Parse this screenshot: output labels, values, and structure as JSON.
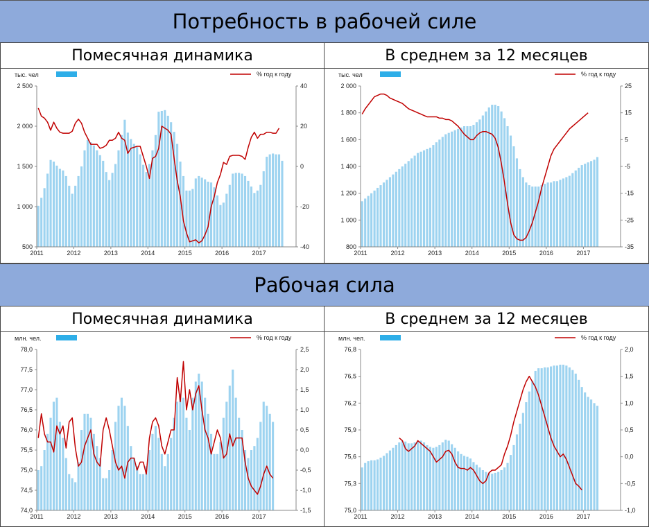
{
  "sections": [
    {
      "title": "Потребность в рабочей силе"
    },
    {
      "title": "Рабочая сила"
    }
  ],
  "panels": {
    "p1": {
      "title": "Помесячная динамика"
    },
    "p2": {
      "title": "В среднем за 12 месяцев"
    },
    "p3": {
      "title": "Помесячная динамика"
    },
    "p4": {
      "title": "В среднем за 12 месяцев"
    }
  },
  "colors": {
    "bars": "#9dd3f0",
    "line": "#c00000",
    "legend_bar": "#2eaee8"
  },
  "chart_data": [
    {
      "type": "bar",
      "left_unit": "тыс. чел",
      "right_unit": "% год к году",
      "ylim": [
        500,
        2500
      ],
      "yticks": [
        "500",
        "1 000",
        "1 500",
        "2 000",
        "2 500"
      ],
      "y2lim": [
        -40,
        40
      ],
      "y2ticks": [
        "-40",
        "-20",
        "0",
        "20",
        "40"
      ],
      "xtick_labels": [
        "2011",
        "2012",
        "2013",
        "2014",
        "2015",
        "2016",
        "2017"
      ],
      "grid": false,
      "legend_position": "top",
      "start": "2011-01",
      "line_start_index": 0,
      "bar_values": [
        1010,
        1110,
        1230,
        1410,
        1580,
        1560,
        1510,
        1470,
        1450,
        1380,
        1260,
        1160,
        1260,
        1380,
        1500,
        1700,
        1830,
        1800,
        1760,
        1700,
        1640,
        1570,
        1430,
        1330,
        1420,
        1530,
        1700,
        1890,
        2080,
        1920,
        1840,
        1780,
        1740,
        1650,
        1520,
        1430,
        1530,
        1700,
        1890,
        2180,
        2190,
        2200,
        2130,
        2050,
        1930,
        1780,
        1560,
        1380,
        1200,
        1200,
        1220,
        1350,
        1380,
        1360,
        1340,
        1310,
        1300,
        1240,
        1140,
        1020,
        1050,
        1160,
        1270,
        1410,
        1420,
        1420,
        1410,
        1380,
        1320,
        1250,
        1170,
        1200,
        1270,
        1440,
        1620,
        1650,
        1660,
        1650,
        1650,
        1570
      ],
      "line_values": [
        29,
        25,
        24,
        22,
        18,
        22,
        19,
        17,
        16.5,
        16.5,
        16.5,
        17.5,
        21.5,
        23.5,
        21.5,
        17,
        14,
        11,
        11,
        11,
        9,
        9.5,
        10.5,
        13,
        13,
        14,
        17,
        14,
        13,
        6.5,
        9,
        9.5,
        10,
        10,
        5,
        0,
        -6,
        4,
        5,
        9,
        20,
        19,
        18,
        16,
        4,
        -7,
        -15,
        -27,
        -33,
        -37.5,
        -37,
        -36.5,
        -38,
        -37,
        -34,
        -30,
        -20,
        -15,
        -8,
        -4,
        2,
        1,
        5,
        5.5,
        5.5,
        5.5,
        5,
        3.5,
        9.5,
        14.5,
        17,
        14,
        16,
        16,
        17,
        17,
        16.5,
        16.5,
        19
      ]
    },
    {
      "type": "bar",
      "left_unit": "тыс. чел",
      "right_unit": "% год к году",
      "ylim": [
        800,
        2000
      ],
      "yticks": [
        "800",
        "1 000",
        "1 200",
        "1 400",
        "1 600",
        "1 800",
        "2 000"
      ],
      "y2lim": [
        -35,
        25
      ],
      "y2ticks": [
        "-35",
        "-25",
        "-15",
        "-5",
        "5",
        "15",
        "25"
      ],
      "xtick_labels": [
        "2011",
        "2012",
        "2013",
        "2014",
        "2015",
        "2016",
        "2017"
      ],
      "grid": false,
      "legend_position": "top",
      "start": "2011-01",
      "line_start_index": 0,
      "bar_values": [
        1140,
        1160,
        1180,
        1200,
        1220,
        1240,
        1260,
        1280,
        1300,
        1320,
        1340,
        1360,
        1380,
        1400,
        1420,
        1440,
        1460,
        1480,
        1500,
        1510,
        1520,
        1530,
        1540,
        1560,
        1580,
        1600,
        1620,
        1640,
        1650,
        1660,
        1670,
        1680,
        1690,
        1700,
        1700,
        1700,
        1710,
        1730,
        1750,
        1780,
        1810,
        1840,
        1860,
        1860,
        1850,
        1810,
        1760,
        1700,
        1630,
        1550,
        1460,
        1380,
        1320,
        1280,
        1260,
        1250,
        1250,
        1250,
        1260,
        1270,
        1280,
        1280,
        1290,
        1290,
        1300,
        1310,
        1320,
        1330,
        1350,
        1370,
        1390,
        1410,
        1420,
        1430,
        1440,
        1450,
        1470
      ],
      "line_values": [
        14.5,
        16.5,
        18,
        19.5,
        21,
        21.5,
        22,
        22,
        21.5,
        20.5,
        20,
        19.5,
        19,
        18.5,
        17.5,
        16.5,
        16,
        15.5,
        15,
        14.5,
        14,
        13.5,
        13.5,
        13.5,
        13.5,
        13,
        13,
        12.5,
        12.5,
        12,
        11,
        10,
        8.5,
        7,
        6,
        5,
        5,
        6.5,
        7.5,
        8,
        8,
        7.5,
        7,
        5.5,
        2,
        -4,
        -11,
        -19,
        -26,
        -30.5,
        -32,
        -32.5,
        -32.5,
        -31.5,
        -29,
        -26,
        -22,
        -18,
        -13,
        -9,
        -5,
        -1,
        1.5,
        3,
        4.5,
        6,
        7.5,
        9,
        10,
        11,
        12,
        13,
        14,
        15
      ]
    },
    {
      "type": "bar",
      "left_unit": "млн. чел.",
      "right_unit": "% год к году",
      "ylim": [
        74.0,
        78.0
      ],
      "yticks": [
        "74,0",
        "74,5",
        "75,0",
        "75,5",
        "76,0",
        "76,5",
        "77,0",
        "77,5",
        "78,0"
      ],
      "y2lim": [
        -1.5,
        2.5
      ],
      "y2ticks": [
        "-1,5",
        "-1,0",
        "-0,5",
        "0,0",
        "0,5",
        "1,0",
        "1,5",
        "2,0",
        "2,5"
      ],
      "xtick_labels": [
        "2011",
        "2012",
        "2013",
        "2014",
        "2015",
        "2016",
        "2017"
      ],
      "grid": false,
      "legend_position": "top",
      "start": "2011-01",
      "line_start_index": 0,
      "bar_values": [
        75.0,
        75.1,
        75.5,
        75.9,
        76.3,
        76.7,
        76.8,
        76.2,
        75.8,
        75.3,
        74.9,
        74.8,
        74.7,
        75.2,
        76.0,
        76.4,
        76.4,
        76.3,
        75.9,
        75.6,
        75.3,
        74.8,
        74.8,
        75.0,
        75.5,
        76.2,
        76.6,
        76.8,
        76.6,
        76.1,
        75.6,
        75.3,
        75.1,
        74.9,
        74.9,
        75.1,
        75.5,
        75.9,
        76.1,
        75.8,
        75.4,
        75.1,
        75.4,
        75.8,
        76.3,
        76.7,
        76.9,
        76.8,
        76.3,
        76.0,
        76.8,
        77.2,
        77.4,
        77.2,
        76.8,
        76.4,
        75.9,
        75.4,
        75.4,
        75.7,
        76.3,
        76.7,
        77.1,
        77.5,
        76.8,
        76.3,
        76.0,
        75.5,
        75.3,
        75.5,
        75.6,
        75.8,
        76.2,
        76.7,
        76.6,
        76.4,
        76.2
      ],
      "line_values": [
        0.3,
        0.9,
        0.4,
        0.2,
        0.2,
        -0.05,
        0.6,
        0.4,
        0.6,
        0.05,
        0.7,
        0.8,
        0.05,
        -0.4,
        -0.3,
        0.1,
        0.3,
        0.5,
        -0.1,
        -0.3,
        -0.4,
        0.5,
        0.8,
        0.5,
        0.1,
        -0.3,
        -0.5,
        -0.4,
        -0.7,
        -0.3,
        -0.2,
        -0.2,
        -0.5,
        -0.3,
        -0.3,
        -0.6,
        0.3,
        0.7,
        0.8,
        0.6,
        0.1,
        -0.1,
        0.2,
        0.5,
        0.5,
        1.8,
        1.2,
        2.2,
        1.0,
        1.5,
        1.0,
        1.4,
        1.6,
        1.0,
        0.5,
        0.3,
        -0.1,
        0.2,
        0.5,
        0.3,
        -0.2,
        -0.1,
        0.4,
        0.1,
        0.3,
        0.3,
        0.3,
        -0.3,
        -0.7,
        -0.9,
        -1.0,
        -1.1,
        -0.9,
        -0.6,
        -0.4,
        -0.6,
        -0.7
      ]
    },
    {
      "type": "bar",
      "left_unit": "млн. чел.",
      "right_unit": "% год к году",
      "ylim": [
        75.0,
        76.8
      ],
      "yticks": [
        "75,0",
        "75,3",
        "75,6",
        "75,9",
        "76,2",
        "76,5",
        "76,8"
      ],
      "y2lim": [
        -1.0,
        2.0
      ],
      "y2ticks": [
        "-1,0",
        "-0,5",
        "0,0",
        "0,5",
        "1,0",
        "1,5",
        "2,0"
      ],
      "xtick_labels": [
        "2011",
        "2012",
        "2013",
        "2014",
        "2015",
        "2016",
        "2017"
      ],
      "grid": false,
      "legend_position": "top",
      "start": "2011-01",
      "line_start_index": 12,
      "bar_values": [
        75.48,
        75.53,
        75.55,
        75.56,
        75.56,
        75.57,
        75.59,
        75.61,
        75.64,
        75.67,
        75.7,
        75.73,
        75.76,
        75.78,
        75.77,
        75.75,
        75.75,
        75.76,
        75.77,
        75.78,
        75.76,
        75.73,
        75.71,
        75.7,
        75.71,
        75.73,
        75.76,
        75.79,
        75.78,
        75.74,
        75.7,
        75.66,
        75.63,
        75.61,
        75.6,
        75.58,
        75.54,
        75.51,
        75.48,
        75.45,
        75.43,
        75.42,
        75.41,
        75.42,
        75.43,
        75.45,
        75.48,
        75.53,
        75.62,
        75.73,
        75.85,
        75.97,
        76.09,
        76.21,
        76.33,
        76.45,
        76.56,
        76.59,
        76.59,
        76.6,
        76.6,
        76.61,
        76.62,
        76.62,
        76.63,
        76.63,
        76.62,
        76.6,
        76.57,
        76.53,
        76.46,
        76.38,
        76.32,
        76.27,
        76.24,
        76.2,
        76.17
      ],
      "line_values": [
        0.35,
        0.3,
        0.15,
        0.1,
        0.15,
        0.2,
        0.3,
        0.25,
        0.2,
        0.15,
        0.1,
        0.0,
        -0.1,
        -0.05,
        0.0,
        0.1,
        0.12,
        0.05,
        -0.1,
        -0.2,
        -0.22,
        -0.22,
        -0.25,
        -0.2,
        -0.25,
        -0.35,
        -0.45,
        -0.5,
        -0.45,
        -0.3,
        -0.25,
        -0.25,
        -0.2,
        -0.15,
        0.05,
        0.2,
        0.4,
        0.65,
        0.85,
        1.05,
        1.25,
        1.4,
        1.5,
        1.4,
        1.3,
        1.15,
        0.95,
        0.75,
        0.55,
        0.35,
        0.2,
        0.1,
        0.0,
        0.05,
        -0.05,
        -0.2,
        -0.35,
        -0.5,
        -0.55,
        -0.62
      ]
    }
  ]
}
